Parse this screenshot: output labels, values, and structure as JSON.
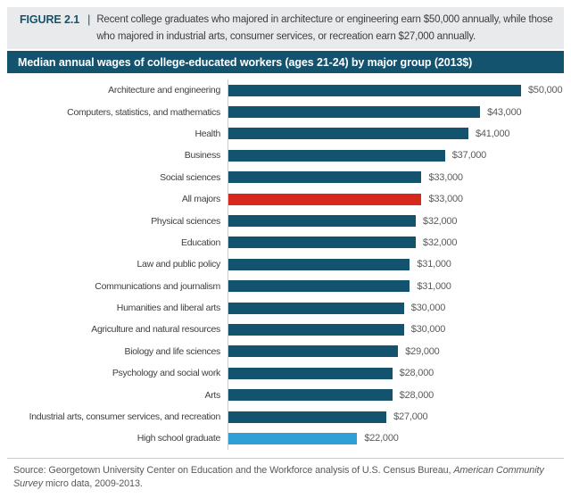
{
  "figure_header": {
    "label": "FIGURE 2.1",
    "separator": "|",
    "caption": "Recent college graduates who majored in architecture or engineering earn $50,000 annually, while those who majored in industrial arts, consumer services, or recreation earn $27,000 annually."
  },
  "title_bar": {
    "text": "Median annual wages of college-educated workers (ages 21-24) by major group (2013$)"
  },
  "source_note": {
    "regular_1": "Source: Georgetown University Center on Education and the Workforce analysis of U.S. Census Bureau, ",
    "italic": "American Community Survey",
    "regular_2": " micro data, 2009-2013."
  },
  "colors": {
    "teal": "#14536e",
    "red": "#d7281e",
    "light_blue": "#2f9fd8",
    "header_band_bg": "#e9eaec",
    "title_bar_bg": "#14536e",
    "axis_line": "#c9cbcd"
  },
  "chart_data": {
    "type": "bar",
    "orientation": "horizontal",
    "title": "Median annual wages of college-educated workers (ages 21-24) by major group (2013$)",
    "xlabel": "",
    "ylabel": "",
    "xlim": [
      0,
      50000
    ],
    "grid": false,
    "legend": false,
    "categories": [
      "Architecture and engineering",
      "Computers, statistics, and mathematics",
      "Health",
      "Business",
      "Social sciences",
      "All majors",
      "Physical sciences",
      "Education",
      "Law and public policy",
      "Communications and journalism",
      "Humanities and liberal arts",
      "Agriculture and natural resources",
      "Biology and life sciences",
      "Psychology and social work",
      "Arts",
      "Industrial arts, consumer services, and recreation",
      "High school graduate"
    ],
    "values": [
      50000,
      43000,
      41000,
      37000,
      33000,
      33000,
      32000,
      32000,
      31000,
      31000,
      30000,
      30000,
      29000,
      28000,
      28000,
      27000,
      22000
    ],
    "value_labels": [
      "$50,000",
      "$43,000",
      "$41,000",
      "$37,000",
      "$33,000",
      "$33,000",
      "$32,000",
      "$32,000",
      "$31,000",
      "$31,000",
      "$30,000",
      "$30,000",
      "$29,000",
      "$28,000",
      "$28,000",
      "$27,000",
      "$22,000"
    ],
    "bar_color_keys": [
      "teal",
      "teal",
      "teal",
      "teal",
      "teal",
      "red",
      "teal",
      "teal",
      "teal",
      "teal",
      "teal",
      "teal",
      "teal",
      "teal",
      "teal",
      "teal",
      "light_blue"
    ],
    "highlights": {
      "All majors": "red",
      "High school graduate": "light_blue"
    }
  }
}
